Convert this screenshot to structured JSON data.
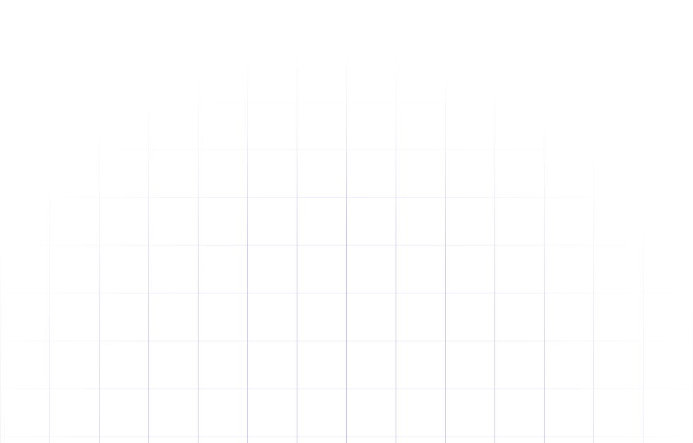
{
  "background": {
    "color": "#ffffff",
    "grid": {
      "vertical_line_color": "#c9c6f2",
      "horizontal_line_color": "#eeedf8",
      "pattern": "square-grid"
    }
  }
}
